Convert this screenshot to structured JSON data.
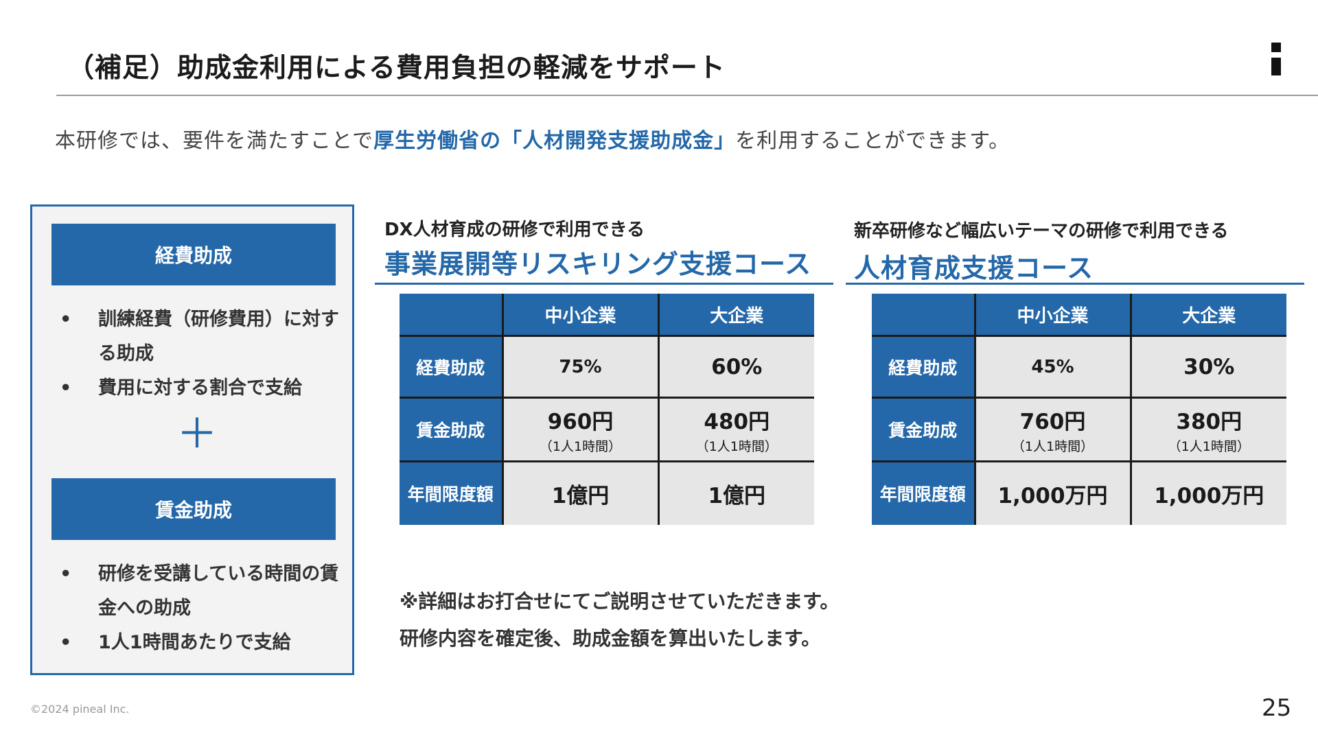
{
  "header": {
    "title": "（補足）助成金利用による費用負担の軽減をサポート"
  },
  "intro": {
    "before": "本研修では、要件を満たすことで",
    "highlight": "厚生労働省の「人材開発支援助成金」",
    "after": "を利用することができます。"
  },
  "left_panel": {
    "section1": {
      "heading": "経費助成",
      "bullets": [
        "訓練経費（研修費用）に対する助成",
        "費用に対する割合で支給"
      ]
    },
    "plus_symbol": "＋",
    "section2": {
      "heading": "賃金助成",
      "bullets": [
        "研修を受講している時間の賃金への助成",
        "1人1時間あたりで支給"
      ]
    }
  },
  "course1": {
    "subtitle": "DX人材育成の研修で利用できる",
    "name": "事業展開等リスキリング支援コース",
    "col_headers": [
      "中小企業",
      "大企業"
    ],
    "rows": [
      {
        "label": "経費助成",
        "values": [
          "75%",
          "60%"
        ],
        "notes": [
          "",
          ""
        ]
      },
      {
        "label": "賃金助成",
        "values": [
          "960円",
          "480円"
        ],
        "notes": [
          "（1人1時間）",
          "（1人1時間）"
        ]
      },
      {
        "label": "年間限度額",
        "values": [
          "1億円",
          "1億円"
        ],
        "notes": [
          "",
          ""
        ]
      }
    ]
  },
  "course2": {
    "subtitle": "新卒研修など幅広いテーマの研修で利用できる",
    "name": "人材育成支援コース",
    "col_headers": [
      "中小企業",
      "大企業"
    ],
    "rows": [
      {
        "label": "経費助成",
        "values": [
          "45%",
          "30%"
        ],
        "notes": [
          "",
          ""
        ]
      },
      {
        "label": "賃金助成",
        "values": [
          "760円",
          "380円"
        ],
        "notes": [
          "（1人1時間）",
          "（1人1時間）"
        ]
      },
      {
        "label": "年間限度額",
        "values": [
          "1,000万円",
          "1,000万円"
        ],
        "notes": [
          "",
          ""
        ]
      }
    ]
  },
  "footnote": {
    "line1": "※詳細はお打合せにてご説明させていただきます。",
    "line2": "研修内容を確定後、助成金額を算出いたします。"
  },
  "footer": {
    "copyright": "©2024 pineal Inc.",
    "page_number": "25"
  },
  "colors": {
    "accent": "#2468a9",
    "cell_bg": "#e6e6e6",
    "panel_bg": "#f3f3f3"
  }
}
